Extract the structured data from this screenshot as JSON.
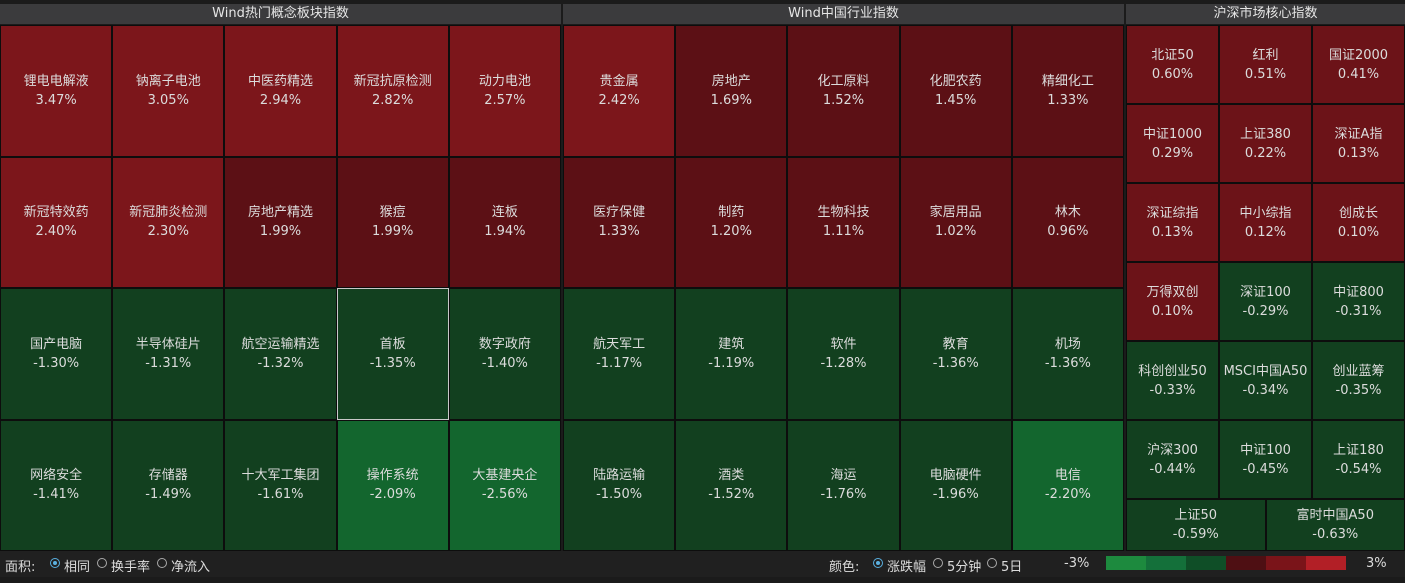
{
  "panels": [
    {
      "title": "Wind热门概念板块指数",
      "cells": [
        {
          "name": "锂电电解液",
          "change": "3.47%"
        },
        {
          "name": "钠离子电池",
          "change": "3.05%"
        },
        {
          "name": "中医药精选",
          "change": "2.94%"
        },
        {
          "name": "新冠抗原检测",
          "change": "2.82%"
        },
        {
          "name": "动力电池",
          "change": "2.57%"
        },
        {
          "name": "新冠特效药",
          "change": "2.40%"
        },
        {
          "name": "新冠肺炎检测",
          "change": "2.30%"
        },
        {
          "name": "房地产精选",
          "change": "1.99%"
        },
        {
          "name": "猴痘",
          "change": "1.99%"
        },
        {
          "name": "连板",
          "change": "1.94%"
        },
        {
          "name": "国产电脑",
          "change": "-1.30%"
        },
        {
          "name": "半导体硅片",
          "change": "-1.31%"
        },
        {
          "name": "航空运输精选",
          "change": "-1.32%"
        },
        {
          "name": "首板",
          "change": "-1.35%"
        },
        {
          "name": "数字政府",
          "change": "-1.40%"
        },
        {
          "name": "网络安全",
          "change": "-1.41%"
        },
        {
          "name": "存储器",
          "change": "-1.49%"
        },
        {
          "name": "十大军工集团",
          "change": "-1.61%"
        },
        {
          "name": "操作系统",
          "change": "-2.09%"
        },
        {
          "name": "大基建央企",
          "change": "-2.56%"
        }
      ]
    },
    {
      "title": "Wind中国行业指数",
      "cells": [
        {
          "name": "贵金属",
          "change": "2.42%"
        },
        {
          "name": "房地产",
          "change": "1.69%"
        },
        {
          "name": "化工原料",
          "change": "1.52%"
        },
        {
          "name": "化肥农药",
          "change": "1.45%"
        },
        {
          "name": "精细化工",
          "change": "1.33%"
        },
        {
          "name": "医疗保健",
          "change": "1.33%"
        },
        {
          "name": "制药",
          "change": "1.20%"
        },
        {
          "name": "生物科技",
          "change": "1.11%"
        },
        {
          "name": "家居用品",
          "change": "1.02%"
        },
        {
          "name": "林木",
          "change": "0.96%"
        },
        {
          "name": "航天军工",
          "change": "-1.17%"
        },
        {
          "name": "建筑",
          "change": "-1.19%"
        },
        {
          "name": "软件",
          "change": "-1.28%"
        },
        {
          "name": "教育",
          "change": "-1.36%"
        },
        {
          "name": "机场",
          "change": "-1.36%"
        },
        {
          "name": "陆路运输",
          "change": "-1.50%"
        },
        {
          "name": "酒类",
          "change": "-1.52%"
        },
        {
          "name": "海运",
          "change": "-1.76%"
        },
        {
          "name": "电脑硬件",
          "change": "-1.96%"
        },
        {
          "name": "电信",
          "change": "-2.20%"
        }
      ]
    },
    {
      "title": "沪深市场核心指数",
      "cells": [
        {
          "name": "北证50",
          "change": "0.60%"
        },
        {
          "name": "红利",
          "change": "0.51%"
        },
        {
          "name": "国证2000",
          "change": "0.41%"
        },
        {
          "name": "中证1000",
          "change": "0.29%"
        },
        {
          "name": "上证380",
          "change": "0.22%"
        },
        {
          "name": "深证A指",
          "change": "0.13%"
        },
        {
          "name": "深证综指",
          "change": "0.13%"
        },
        {
          "name": "中小综指",
          "change": "0.12%"
        },
        {
          "name": "创成长",
          "change": "0.10%"
        },
        {
          "name": "万得双创",
          "change": "0.10%"
        },
        {
          "name": "深证100",
          "change": "-0.29%"
        },
        {
          "name": "中证800",
          "change": "-0.31%"
        },
        {
          "name": "科创创业50",
          "change": "-0.33%"
        },
        {
          "name": "MSCI中国A50",
          "change": "-0.34%"
        },
        {
          "name": "创业蓝筹",
          "change": "-0.35%"
        },
        {
          "name": "沪深300",
          "change": "-0.44%"
        },
        {
          "name": "中证100",
          "change": "-0.45%"
        },
        {
          "name": "上证180",
          "change": "-0.54%"
        },
        {
          "name": "上证50",
          "change": "-0.59%"
        },
        {
          "name": "富时中国A50",
          "change": "-0.63%"
        }
      ]
    }
  ],
  "footer": {
    "area_label": "面积:",
    "area_options": [
      "相同",
      "换手率",
      "净流入"
    ],
    "color_label": "颜色:",
    "color_options": [
      "涨跌幅",
      "5分钟",
      "5日"
    ],
    "scale_min": "-3%",
    "scale_max": "3%"
  }
}
